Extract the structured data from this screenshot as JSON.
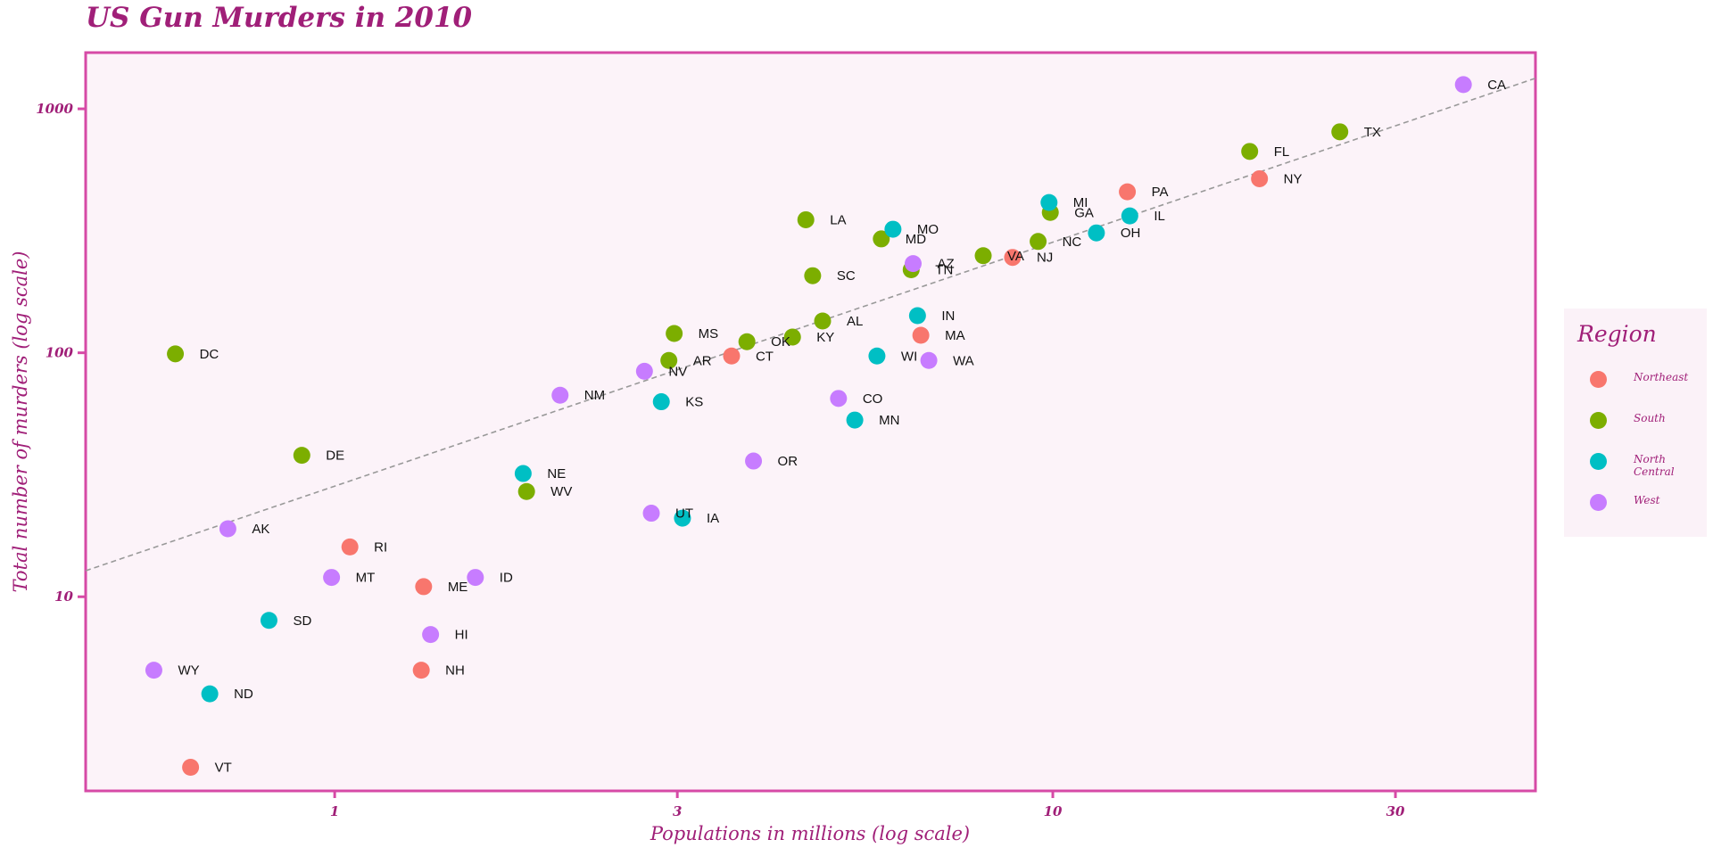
{
  "chart_data": {
    "type": "scatter",
    "title": "US Gun Murders in 2010",
    "xlabel": "Populations in millions (log scale)",
    "ylabel": "Total number of murders (log scale)",
    "x_scale": "log10",
    "y_scale": "log10",
    "x_ticks": [
      1,
      3,
      10,
      30
    ],
    "x_tick_labels": [
      "1",
      "3",
      "10",
      "30"
    ],
    "y_ticks": [
      10,
      100,
      1000
    ],
    "y_tick_labels": [
      "10",
      "100",
      "1000"
    ],
    "xlim": [
      0.45,
      47
    ],
    "ylim": [
      1.6,
      1700
    ],
    "legend_title": "Region",
    "legend_position": "right",
    "grid": false,
    "reference_line": {
      "style": "dashed",
      "color": "#999999",
      "intercept": 28.4,
      "slope": 1
    },
    "series": [
      {
        "name": "Northeast",
        "color": "#F8766D",
        "points": [
          {
            "label": "PA",
            "x": 12.7,
            "y": 457
          },
          {
            "label": "NY",
            "x": 19.4,
            "y": 517
          },
          {
            "label": "NJ",
            "x": 8.79,
            "y": 246
          },
          {
            "label": "MA",
            "x": 6.55,
            "y": 118
          },
          {
            "label": "CT",
            "x": 3.57,
            "y": 97
          },
          {
            "label": "RI",
            "x": 1.05,
            "y": 16
          },
          {
            "label": "ME",
            "x": 1.33,
            "y": 11
          },
          {
            "label": "NH",
            "x": 1.32,
            "y": 5
          },
          {
            "label": "VT",
            "x": 0.63,
            "y": 2
          }
        ]
      },
      {
        "name": "South",
        "color": "#7CAE00",
        "points": [
          {
            "label": "TX",
            "x": 25.1,
            "y": 805
          },
          {
            "label": "FL",
            "x": 18.8,
            "y": 669
          },
          {
            "label": "GA",
            "x": 9.92,
            "y": 376
          },
          {
            "label": "NC",
            "x": 9.54,
            "y": 286
          },
          {
            "label": "VA",
            "x": 8.0,
            "y": 250
          },
          {
            "label": "TN",
            "x": 6.35,
            "y": 219
          },
          {
            "label": "MD",
            "x": 5.77,
            "y": 293
          },
          {
            "label": "LA",
            "x": 4.53,
            "y": 351
          },
          {
            "label": "SC",
            "x": 4.63,
            "y": 207
          },
          {
            "label": "AL",
            "x": 4.78,
            "y": 135
          },
          {
            "label": "KY",
            "x": 4.34,
            "y": 116
          },
          {
            "label": "OK",
            "x": 3.75,
            "y": 111
          },
          {
            "label": "MS",
            "x": 2.97,
            "y": 120
          },
          {
            "label": "AR",
            "x": 2.92,
            "y": 93
          },
          {
            "label": "WV",
            "x": 1.85,
            "y": 27
          },
          {
            "label": "DE",
            "x": 0.9,
            "y": 38
          },
          {
            "label": "DC",
            "x": 0.6,
            "y": 99
          }
        ]
      },
      {
        "name": "North Central",
        "color": "#00BFC4",
        "points": [
          {
            "label": "IL",
            "x": 12.8,
            "y": 364
          },
          {
            "label": "OH",
            "x": 11.5,
            "y": 310
          },
          {
            "label": "MI",
            "x": 9.88,
            "y": 413
          },
          {
            "label": "MO",
            "x": 5.99,
            "y": 321
          },
          {
            "label": "IN",
            "x": 6.48,
            "y": 142
          },
          {
            "label": "WI",
            "x": 5.69,
            "y": 97
          },
          {
            "label": "MN",
            "x": 5.3,
            "y": 53
          },
          {
            "label": "KS",
            "x": 2.85,
            "y": 63
          },
          {
            "label": "IA",
            "x": 3.05,
            "y": 21
          },
          {
            "label": "NE",
            "x": 1.83,
            "y": 32
          },
          {
            "label": "SD",
            "x": 0.81,
            "y": 8
          },
          {
            "label": "ND",
            "x": 0.67,
            "y": 4
          }
        ]
      },
      {
        "name": "West",
        "color": "#C77CFF",
        "points": [
          {
            "label": "CA",
            "x": 37.3,
            "y": 1257
          },
          {
            "label": "AZ",
            "x": 6.39,
            "y": 232
          },
          {
            "label": "WA",
            "x": 6.72,
            "y": 93
          },
          {
            "label": "CO",
            "x": 5.03,
            "y": 65
          },
          {
            "label": "OR",
            "x": 3.83,
            "y": 36
          },
          {
            "label": "NV",
            "x": 2.7,
            "y": 84
          },
          {
            "label": "NM",
            "x": 2.06,
            "y": 67
          },
          {
            "label": "UT",
            "x": 2.76,
            "y": 22
          },
          {
            "label": "ID",
            "x": 1.57,
            "y": 12
          },
          {
            "label": "HI",
            "x": 1.36,
            "y": 7
          },
          {
            "label": "MT",
            "x": 0.99,
            "y": 12
          },
          {
            "label": "AK",
            "x": 0.71,
            "y": 19
          },
          {
            "label": "WY",
            "x": 0.56,
            "y": 5
          }
        ]
      }
    ]
  },
  "style": {
    "panel_bg": "#fcf3f9",
    "border_color": "#d64aa6",
    "text_color": "#a01f78",
    "legend_bg": "#fbf2f8"
  }
}
